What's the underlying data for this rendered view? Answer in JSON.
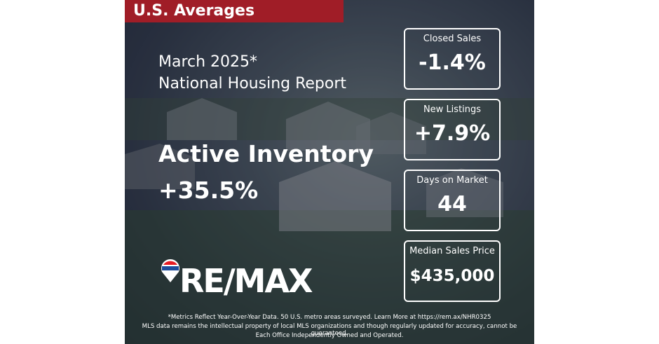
{
  "header": {
    "badge": "U.S. Averages",
    "period": "March 2025*",
    "report": "National Housing Report"
  },
  "headline": {
    "label": "Active Inventory",
    "value": "+35.5%"
  },
  "stats": [
    {
      "label": "Closed Sales",
      "value": "-1.4%"
    },
    {
      "label": "New Listings",
      "value": "+7.9%"
    },
    {
      "label": "Days on Market",
      "value": "44"
    },
    {
      "label": "Median Sales Price",
      "value": "$435,000"
    }
  ],
  "logo": "RE/MAX",
  "footer": [
    "*Metrics Reflect Year-Over-Year Data. 50 U.S. metro areas surveyed. Learn More at https://rem.ax/NHR0325",
    "MLS data remains the intellectual property of local MLS organizations and though regularly updated for accuracy, cannot be guaranteed.",
    "Each Office Independently Owned and Operated."
  ]
}
